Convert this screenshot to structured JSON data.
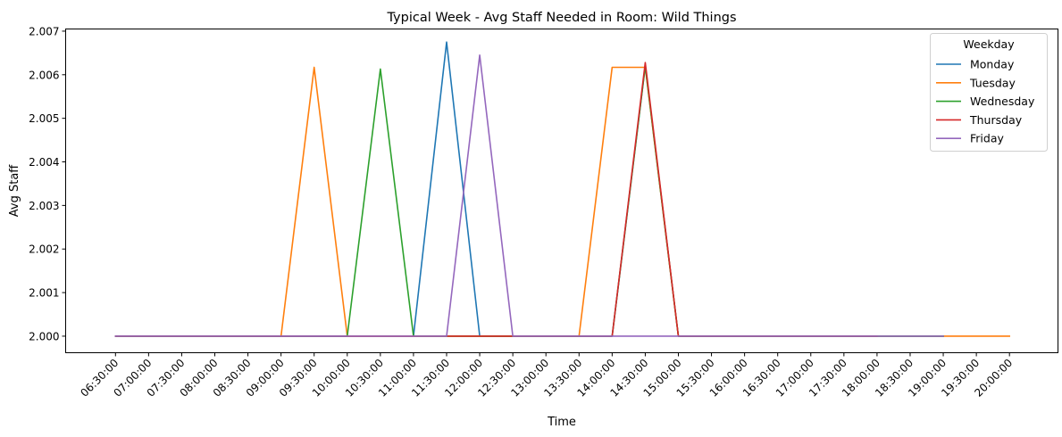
{
  "chart_data": {
    "type": "line",
    "title": "Typical Week - Avg Staff Needed in Room: Wild Things",
    "xlabel": "Time",
    "ylabel": "Avg Staff",
    "categories": [
      "06:30:00",
      "07:00:00",
      "07:30:00",
      "08:00:00",
      "08:30:00",
      "09:00:00",
      "09:30:00",
      "10:00:00",
      "10:30:00",
      "11:00:00",
      "11:30:00",
      "12:00:00",
      "12:30:00",
      "13:00:00",
      "13:30:00",
      "14:00:00",
      "14:30:00",
      "15:00:00",
      "15:30:00",
      "16:00:00",
      "16:30:00",
      "17:00:00",
      "17:30:00",
      "18:00:00",
      "18:30:00",
      "19:00:00",
      "19:30:00",
      "20:00:00"
    ],
    "yticks": [
      "2.000",
      "2.001",
      "2.002",
      "2.003",
      "2.004",
      "2.005",
      "2.006",
      "2.007"
    ],
    "ylim": [
      1.99962,
      2.00705
    ],
    "grid": false,
    "legend": {
      "title": "Weekday",
      "placement": "top-right"
    },
    "series": [
      {
        "name": "Monday",
        "color": "#1f77b4",
        "values": [
          2.0,
          2.0,
          2.0,
          2.0,
          2.0,
          2.0,
          2.0,
          2.0,
          2.0,
          2.0,
          2.00675,
          2.0,
          2.0,
          2.0,
          2.0,
          2.0,
          2.0062,
          2.0,
          2.0,
          2.0,
          2.0,
          2.0,
          2.0,
          2.0,
          2.0,
          2.0,
          null,
          null
        ]
      },
      {
        "name": "Tuesday",
        "color": "#ff7f0e",
        "values": [
          2.0,
          2.0,
          2.0,
          2.0,
          2.0,
          2.0,
          2.00617,
          2.0,
          2.0,
          2.0,
          2.0,
          2.0,
          2.0,
          2.0,
          2.0,
          2.00617,
          2.00617,
          2.0,
          2.0,
          2.0,
          2.0,
          2.0,
          2.0,
          2.0,
          2.0,
          2.0,
          2.0,
          2.0
        ]
      },
      {
        "name": "Wednesday",
        "color": "#2ca02c",
        "values": [
          2.0,
          2.0,
          2.0,
          2.0,
          2.0,
          2.0,
          2.0,
          2.0,
          2.00613,
          2.0,
          2.0,
          2.0,
          2.0,
          2.0,
          2.0,
          2.0,
          2.0062,
          2.0,
          2.0,
          2.0,
          2.0,
          2.0,
          2.0,
          2.0,
          2.0,
          2.0,
          null,
          null
        ]
      },
      {
        "name": "Thursday",
        "color": "#d62728",
        "values": [
          2.0,
          2.0,
          2.0,
          2.0,
          2.0,
          2.0,
          2.0,
          2.0,
          2.0,
          2.0,
          2.0,
          2.0,
          2.0,
          2.0,
          2.0,
          2.0,
          2.00628,
          2.0,
          2.0,
          2.0,
          2.0,
          2.0,
          2.0,
          2.0,
          null,
          null,
          null,
          null
        ]
      },
      {
        "name": "Friday",
        "color": "#9467bd",
        "values": [
          2.0,
          2.0,
          2.0,
          2.0,
          2.0,
          2.0,
          2.0,
          2.0,
          2.0,
          2.0,
          2.0,
          2.00645,
          2.0,
          2.0,
          2.0,
          2.0,
          2.0,
          2.0,
          2.0,
          2.0,
          2.0,
          2.0,
          2.0,
          2.0,
          2.0,
          2.0,
          null,
          null
        ]
      }
    ]
  }
}
